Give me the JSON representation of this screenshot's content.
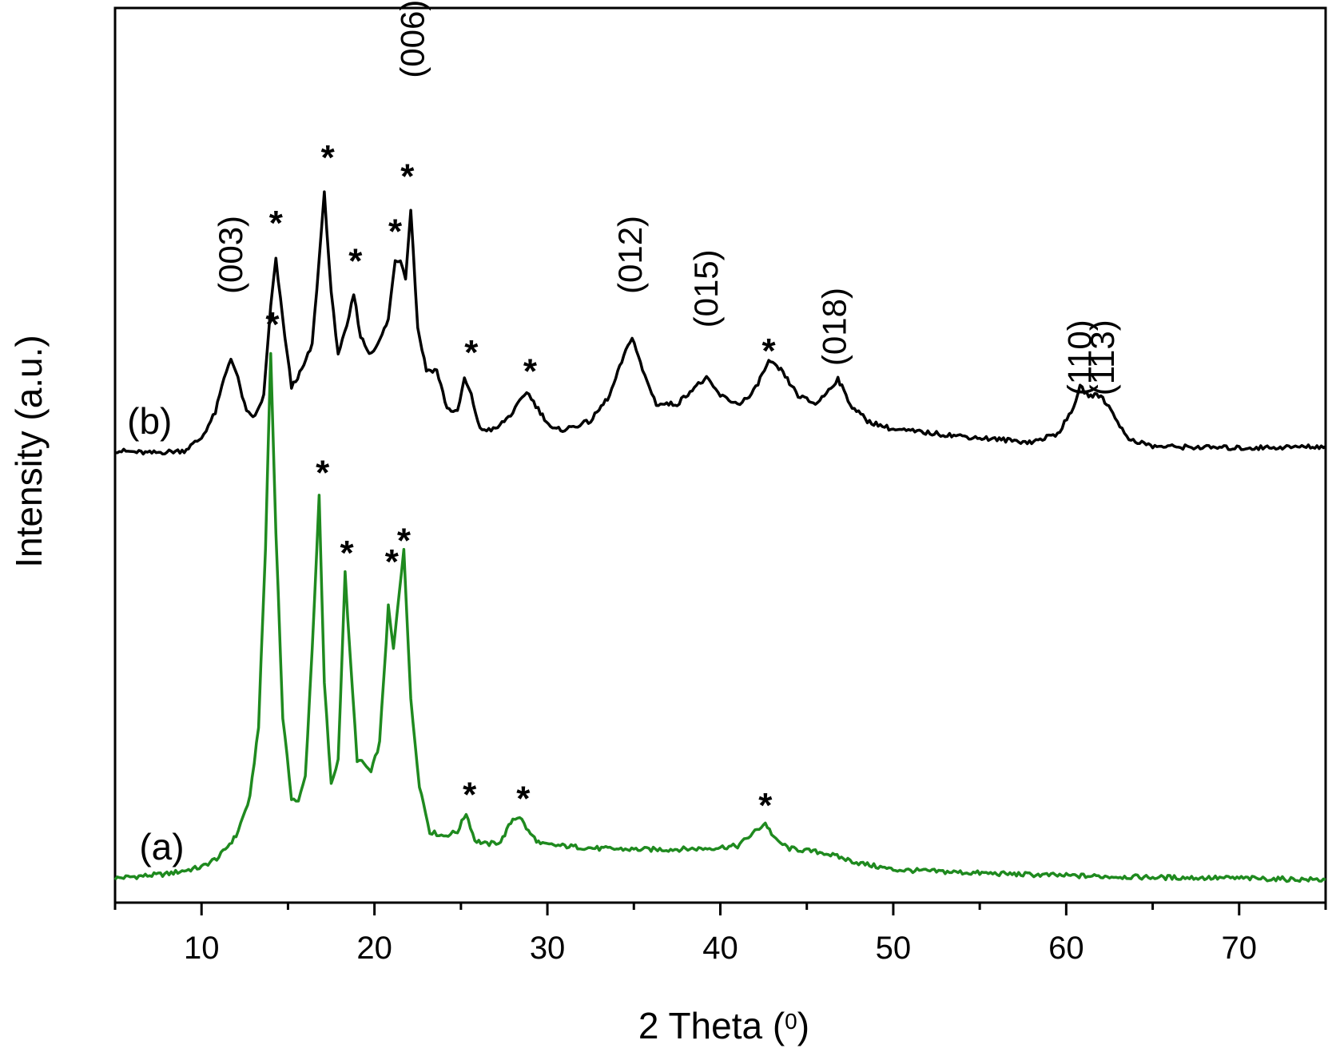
{
  "chart_data": {
    "type": "line",
    "xlabel": "2 Theta (",
    "xlabel_unit": "0",
    "xlabel_close": ")",
    "ylabel": "Intensity (a.u.)",
    "xlim": [
      5,
      75
    ],
    "ylim": [
      0,
      100
    ],
    "xticks": [
      10,
      20,
      30,
      40,
      50,
      60,
      70
    ],
    "yticks_shown": false,
    "colors": {
      "a": "#1f8a1f",
      "b": "#000000"
    },
    "series": [
      {
        "name": "(a)",
        "color": "#1f8a1f",
        "x": [
          5,
          8,
          10,
          11,
          12,
          12.8,
          13.3,
          13.7,
          14,
          14.3,
          14.7,
          15.2,
          15.6,
          16,
          16.4,
          16.8,
          17.1,
          17.5,
          17.9,
          18.3,
          18.6,
          19,
          19.4,
          19.8,
          20.3,
          20.8,
          21.1,
          21.3,
          21.7,
          22.1,
          22.6,
          23.2,
          24,
          24.8,
          25.3,
          25.8,
          26.5,
          27.3,
          28,
          28.4,
          28.9,
          29.6,
          31,
          33,
          35,
          37,
          39,
          41,
          42,
          42.6,
          43.2,
          44,
          46,
          48,
          50,
          55,
          60,
          65,
          70,
          75
        ],
        "y": [
          1,
          1.5,
          2.3,
          3.5,
          6.0,
          10.5,
          19.0,
          40.0,
          63.0,
          42.0,
          20.0,
          10.5,
          10.0,
          13.0,
          28.0,
          46.0,
          24.0,
          12.0,
          15.0,
          37.0,
          27.0,
          15.0,
          14.5,
          13.5,
          17.0,
          33.0,
          28.0,
          32.0,
          40.0,
          22.0,
          12.0,
          6.5,
          6.0,
          6.5,
          8.7,
          5.5,
          5.0,
          5.3,
          8.0,
          8.3,
          6.5,
          5.0,
          4.8,
          4.5,
          4.4,
          4.4,
          4.5,
          4.8,
          6.5,
          7.5,
          5.5,
          4.5,
          4.0,
          2.8,
          2.0,
          1.6,
          1.3,
          1.1,
          1.0,
          0.8
        ]
      },
      {
        "name": "(b)",
        "color": "#000000",
        "x": [
          5,
          7,
          9,
          10,
          10.8,
          11.3,
          11.7,
          12.1,
          12.6,
          13.1,
          13.6,
          14,
          14.3,
          14.7,
          15.2,
          15.8,
          16.4,
          16.8,
          17.1,
          17.5,
          17.9,
          18.4,
          18.8,
          19.2,
          19.7,
          20.2,
          20.8,
          21.2,
          21.5,
          21.8,
          22.1,
          22.5,
          23,
          23.6,
          24.2,
          24.8,
          25.2,
          25.6,
          26.1,
          27,
          28,
          28.8,
          29.6,
          30.3,
          31,
          32.5,
          33.6,
          34.3,
          34.9,
          35.5,
          36.3,
          37.5,
          38.5,
          39.2,
          40,
          41,
          41.8,
          42.8,
          43.5,
          44.5,
          45.5,
          46,
          46.8,
          47.5,
          48.5,
          50,
          55,
          58,
          59.5,
          60.3,
          60.8,
          61.3,
          62,
          62.7,
          63.5,
          65,
          70,
          75
        ],
        "y": [
          51.5,
          51.2,
          51.5,
          53,
          56,
          60,
          62.5,
          60,
          56,
          55.5,
          58,
          68.5,
          74,
          67,
          59,
          61,
          64,
          74,
          82,
          70,
          63,
          66,
          70,
          65,
          63,
          64,
          67,
          74,
          74,
          72,
          80,
          66,
          61,
          61,
          56.5,
          56,
          60,
          58,
          54,
          54,
          56,
          58.5,
          56,
          54,
          54,
          55,
          58,
          62,
          65,
          61,
          57,
          57,
          59,
          60,
          58,
          57,
          58,
          62,
          61,
          58,
          57,
          58,
          60,
          57,
          55,
          54,
          53,
          52.5,
          53.5,
          56,
          59,
          58,
          58,
          56,
          53,
          52,
          51.8,
          52
        ]
      }
    ],
    "peak_labels": [
      {
        "label": "(003)",
        "x": 11.7,
        "y": 70
      },
      {
        "label": "(006)",
        "x": 22.2,
        "y": 95.5
      },
      {
        "label": "(012)",
        "x": 34.8,
        "y": 70
      },
      {
        "label": "(015)",
        "x": 39.2,
        "y": 66
      },
      {
        "label": "(018)",
        "x": 46.6,
        "y": 61.5
      },
      {
        "label": "(110)",
        "x": 60.8,
        "y": 58
      },
      {
        "label": "(113)",
        "x": 62.1,
        "y": 58
      }
    ],
    "stars_b": [
      {
        "x": 14.3,
        "y": 77
      },
      {
        "x": 17.3,
        "y": 84.7
      },
      {
        "x": 18.9,
        "y": 72.5
      },
      {
        "x": 21.2,
        "y": 76
      },
      {
        "x": 21.9,
        "y": 82.5
      },
      {
        "x": 25.6,
        "y": 61.7
      },
      {
        "x": 29.0,
        "y": 59.5
      },
      {
        "x": 42.8,
        "y": 61.9
      }
    ],
    "stars_a": [
      {
        "x": 14.1,
        "y": 65
      },
      {
        "x": 17.0,
        "y": 47.5
      },
      {
        "x": 18.4,
        "y": 38
      },
      {
        "x": 21.0,
        "y": 37
      },
      {
        "x": 21.7,
        "y": 39.5
      },
      {
        "x": 25.5,
        "y": 9.5
      },
      {
        "x": 28.6,
        "y": 9
      },
      {
        "x": 42.6,
        "y": 8.2
      }
    ],
    "series_labels": [
      {
        "label": "(a)",
        "x": 7.7,
        "y": 3.2
      },
      {
        "label": "(b)",
        "x": 7.0,
        "y": 53.5
      }
    ]
  }
}
